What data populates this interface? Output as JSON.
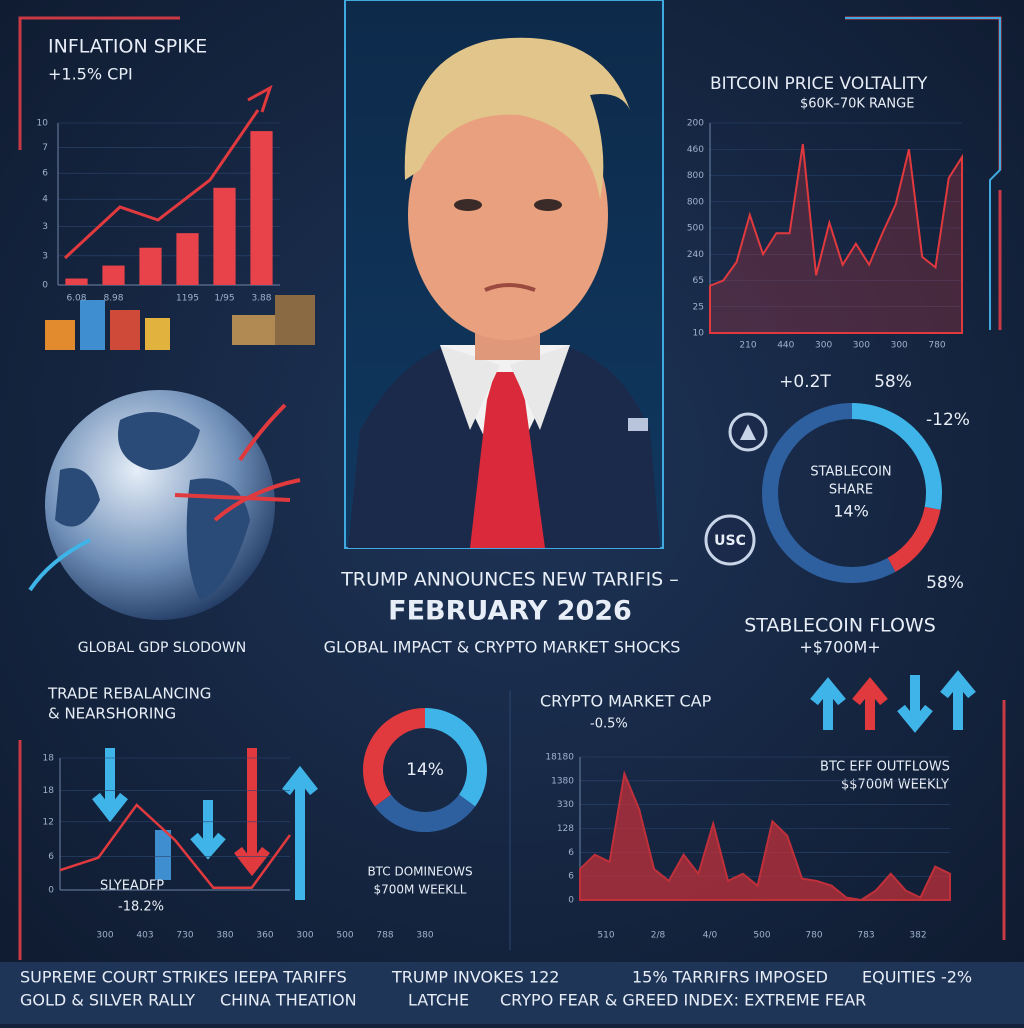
{
  "headline": {
    "line1": "TRUMP ANNOUNCES NEW TARIFIS –",
    "line2": "FEBRUARY 2026",
    "line3": "GLOBAL IMPACT & CRYPTO MARKET SHOCKS"
  },
  "inflation": {
    "title": "INFLATION SPIKE",
    "subtitle": "+1.5% CPI",
    "type": "bar",
    "color": "#e8434a",
    "categories": [
      "6.08",
      "8.98",
      null,
      "1195",
      "1/95",
      "3.88"
    ],
    "values": [
      0.4,
      1.2,
      2.3,
      3.2,
      6.0,
      9.5
    ],
    "ylim": [
      0,
      10
    ],
    "yticks": [
      {
        "value": 10,
        "label": "10"
      },
      {
        "value": 8.5,
        "label": "7"
      },
      {
        "value": 6.9,
        "label": "6"
      },
      {
        "value": 5.3,
        "label": "4"
      },
      {
        "value": 3.6,
        "label": "3"
      },
      {
        "value": 1.8,
        "label": "3"
      },
      0
    ]
  },
  "bitcoin": {
    "title": "BITCOIN PRICE VOLTALITY",
    "subtitle": "$60K–70K RANGE",
    "type": "area",
    "color": "#e0393e",
    "values": [
      1.8,
      2.0,
      2.7,
      4.5,
      3.0,
      3.8,
      3.8,
      7.2,
      2.2,
      4.2,
      2.6,
      3.4,
      2.6,
      3.8,
      4.9,
      7.0,
      2.9,
      2.5,
      5.9,
      6.7
    ],
    "ylim": [
      0,
      8
    ],
    "yticks": [
      {
        "value": 8,
        "label": "200"
      },
      {
        "value": 7,
        "label": "460"
      },
      {
        "value": 6,
        "label": "800"
      },
      {
        "value": 5,
        "label": "800"
      },
      {
        "value": 4,
        "label": "500"
      },
      {
        "value": 3,
        "label": "240"
      },
      {
        "value": 2,
        "label": "65"
      },
      {
        "value": 1,
        "label": "25"
      },
      {
        "value": 0,
        "label": "10"
      }
    ],
    "xtick_labels": [
      "210",
      "440",
      "300",
      "300",
      "300",
      "780"
    ]
  },
  "stablecoin": {
    "labels": [
      "+0.2T",
      "58%",
      "-12%",
      "58%"
    ],
    "center": [
      "STABLECOIN",
      "SHARE",
      "14%"
    ],
    "coin": "USC",
    "segments": [
      28,
      14,
      58
    ],
    "colors": [
      "#3fb4e8",
      "#e0393e",
      "#2e5f9e"
    ]
  },
  "flows": {
    "title": "STABLECOIN FLOWS",
    "subtitle": "+$700M+"
  },
  "globe": {
    "label": "GLOBAL GDP SLODOWN"
  },
  "trade": {
    "title": [
      "TRADE REBALANCING",
      "& NEARSHORING"
    ],
    "type": "line",
    "color": "#e0393e",
    "values": [
      2.7,
      4.4,
      11.6,
      6.8,
      0.3,
      0.3,
      7.5
    ],
    "ylim": [
      0,
      18
    ],
    "yticks": [
      18,
      {
        "value": 13.6,
        "label": "18"
      },
      {
        "value": 9.3,
        "label": "12"
      },
      {
        "value": 4.6,
        "label": "6"
      },
      0
    ],
    "xtick_labels": [
      "300",
      "403",
      "730",
      "380",
      "360",
      "300",
      "500",
      "788",
      "380"
    ],
    "labels": [
      "SLYEADFP",
      "-18.2%"
    ]
  },
  "dominance": {
    "labels": [
      "14%",
      "BTC DOMINEOWS",
      "$700M WEEKLL"
    ],
    "segments": [
      35,
      30,
      35
    ],
    "colors": [
      "#3fb4e8",
      "#2e5f9e",
      "#e0393e"
    ]
  },
  "marketcap": {
    "title": "CRYPTO MARKET CAP",
    "subtitle": "-0.5%",
    "type": "area",
    "color": "#c0303a",
    "values": [
      1.3,
      1.9,
      1.6,
      5.3,
      3.8,
      1.3,
      0.8,
      1.9,
      1.1,
      3.2,
      0.8,
      1.1,
      0.6,
      3.3,
      2.7,
      0.9,
      0.8,
      0.6,
      0.1,
      0.0,
      0.4,
      1.1,
      0.4,
      0.1,
      1.4,
      1.1
    ],
    "ylim": [
      0,
      6
    ],
    "yticks": [
      {
        "value": 6,
        "label": "18180"
      },
      {
        "value": 5,
        "label": "1380"
      },
      {
        "value": 4,
        "label": "330"
      },
      {
        "value": 3,
        "label": "128"
      },
      {
        "value": 2,
        "label": "6"
      },
      {
        "value": 1,
        "label": "6"
      },
      0
    ],
    "xtick_labels": [
      "510",
      "2/8",
      "4/0",
      "500",
      "780",
      "783",
      "382"
    ],
    "etf": [
      "BTC EFF OUTFLOWS",
      "$$700M WEEKLY"
    ]
  },
  "ticker": {
    "row1": [
      "SUPREME COURT STRIKES IEEPA TARIFFS",
      "TRUMP INVOKES 122",
      "15% TARRIFRS IMPOSED",
      "EQUITIES -2%"
    ],
    "row2": [
      "GOLD & SILVER RALLY",
      "CHINA THEATION",
      "LATCHE",
      "CRYPO FEAR & GREED INDEX: EXTREME FEAR"
    ]
  }
}
